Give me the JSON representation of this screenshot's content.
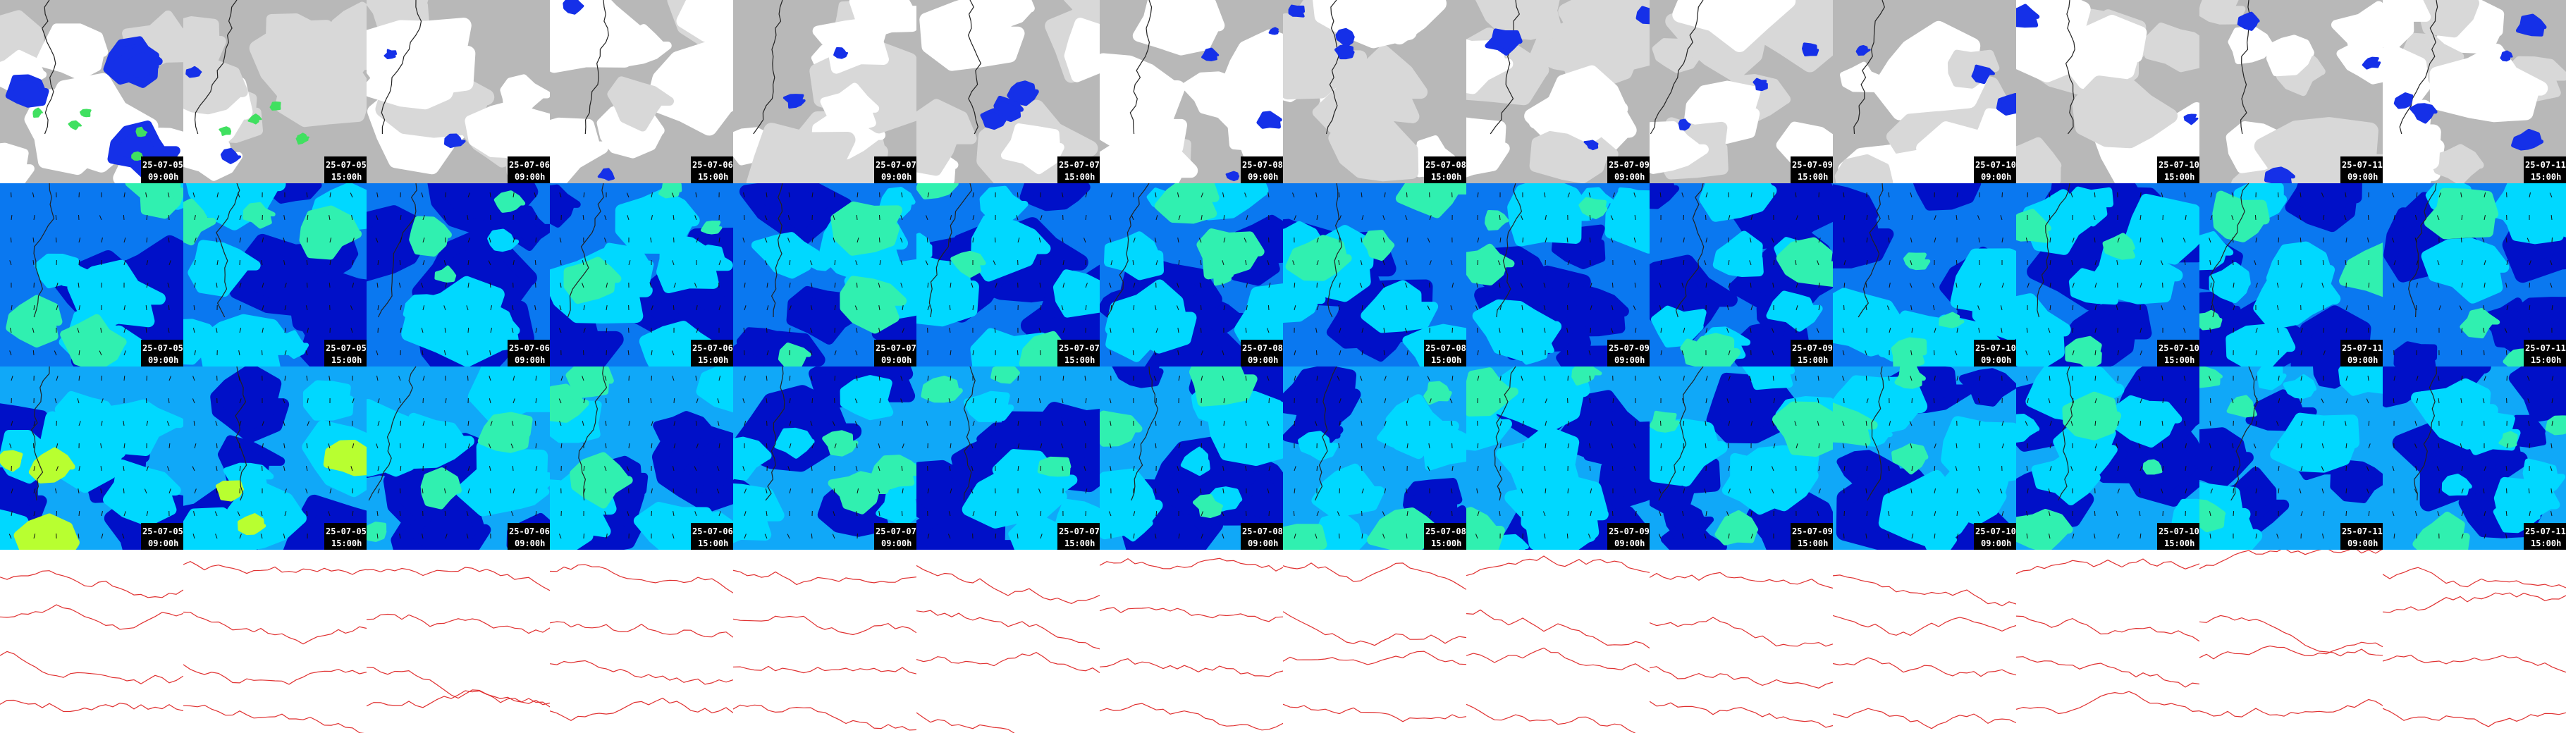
{
  "columns": [
    {
      "date": "25-07-05",
      "time": "09:00h"
    },
    {
      "date": "25-07-05",
      "time": "15:00h"
    },
    {
      "date": "25-07-06",
      "time": "09:00h"
    },
    {
      "date": "25-07-06",
      "time": "15:00h"
    },
    {
      "date": "25-07-07",
      "time": "09:00h"
    },
    {
      "date": "25-07-07",
      "time": "15:00h"
    },
    {
      "date": "25-07-08",
      "time": "09:00h"
    },
    {
      "date": "25-07-08",
      "time": "15:00h"
    },
    {
      "date": "25-07-09",
      "time": "09:00h"
    },
    {
      "date": "25-07-09",
      "time": "15:00h"
    },
    {
      "date": "25-07-10",
      "time": "09:00h"
    },
    {
      "date": "25-07-10",
      "time": "15:00h"
    },
    {
      "date": "25-07-11",
      "time": "09:00h"
    },
    {
      "date": "25-07-11",
      "time": "15:00h"
    }
  ]
}
